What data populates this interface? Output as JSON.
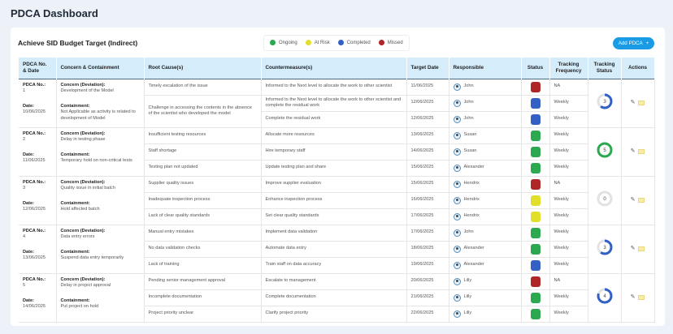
{
  "page_title": "PDCA Dashboard",
  "card_title": "Achieve SID Budget Target (Indirect)",
  "legend": [
    {
      "label": "Ongoing",
      "color": "#2ca94f"
    },
    {
      "label": "At Risk",
      "color": "#e2df2a"
    },
    {
      "label": "Completed",
      "color": "#3360c4"
    },
    {
      "label": "Missed",
      "color": "#b02525"
    }
  ],
  "add_button": "Add PDCA",
  "headers": [
    "PDCA No. & Date",
    "Concern & Containment",
    "Root Cause(s)",
    "Countermeasure(s)",
    "Target Date",
    "Responsible",
    "Status",
    "Tracking Frequency",
    "Tracking Status",
    "Actions"
  ],
  "labels": {
    "pdca_no": "PDCA No.:",
    "date": "Date:",
    "concern": "Concern (Deviation):",
    "containment": "Containment:"
  },
  "groups": [
    {
      "no": "1",
      "date": "10/06/2025",
      "concern": "Development of the Model",
      "containment": "Not Applicable as activity is related to development of Model",
      "tracking": {
        "value": "3",
        "fraction": 0.6,
        "color": "#3360c4"
      },
      "rows": [
        {
          "root": "Timely escalation of the issue",
          "counter": "Informed to the Next level to allocate the work to other scientist",
          "target": "11/06/2025",
          "resp": "John",
          "status": "Missed",
          "freq": "NA"
        },
        {
          "root": "Challenge in accessing the contents in the absence of the scientist who developed the model",
          "counter": "Informed to the Next level to allocate the work to other scientist and complete the residual work",
          "target": "12/06/2025",
          "resp": "John",
          "status": "Completed",
          "freq": "Weekly"
        },
        {
          "root": null,
          "counter": "Complete the residual work",
          "target": "12/06/2025",
          "resp": "John",
          "status": "Completed",
          "freq": "Weekly"
        }
      ]
    },
    {
      "no": "2",
      "date": "11/06/2025",
      "concern": "Delay in testing phase",
      "containment": "Temporary hold on non-critical tests",
      "tracking": {
        "value": "5",
        "fraction": 1,
        "color": "#2ca94f"
      },
      "rows": [
        {
          "root": "Insufficient testing resources",
          "counter": "Allocate more resources",
          "target": "13/06/2025",
          "resp": "Susan",
          "status": "Ongoing",
          "freq": "Weekly"
        },
        {
          "root": "Staff shortage",
          "counter": "Hire temporary staff",
          "target": "14/06/2025",
          "resp": "Susan",
          "status": "Ongoing",
          "freq": "Weekly"
        },
        {
          "root": "Testing plan not updated",
          "counter": "Update testing plan and share",
          "target": "15/06/2025",
          "resp": "Alexander",
          "status": "Ongoing",
          "freq": "Weekly"
        }
      ]
    },
    {
      "no": "3",
      "date": "12/06/2025",
      "concern": "Quality issue in initial batch",
      "containment": "Hold affected batch",
      "tracking": {
        "value": "0",
        "fraction": 0,
        "color": "#3360c4"
      },
      "rows": [
        {
          "root": "Supplier quality issues",
          "counter": "Improve supplier evaluation",
          "target": "15/06/2025",
          "resp": "Hendrix",
          "status": "Missed",
          "freq": "NA"
        },
        {
          "root": "Inadequate inspection process",
          "counter": "Enhance inspection process",
          "target": "16/06/2025",
          "resp": "Hendrix",
          "status": "At Risk",
          "freq": "Weekly"
        },
        {
          "root": "Lack of clear quality standards",
          "counter": "Set clear quality standards",
          "target": "17/06/2025",
          "resp": "Hendrix",
          "status": "At Risk",
          "freq": "Weekly"
        }
      ]
    },
    {
      "no": "4",
      "date": "13/06/2025",
      "concern": "Data entry errors",
      "containment": "Suspend data entry temporarily",
      "tracking": {
        "value": "3",
        "fraction": 0.6,
        "color": "#3360c4"
      },
      "rows": [
        {
          "root": "Manual entry mistakes",
          "counter": "Implement data validation",
          "target": "17/06/2025",
          "resp": "John",
          "status": "Ongoing",
          "freq": "Weekly"
        },
        {
          "root": "No data validation checks",
          "counter": "Automate data entry",
          "target": "18/06/2025",
          "resp": "Alexander",
          "status": "Ongoing",
          "freq": "Weekly"
        },
        {
          "root": "Lack of training",
          "counter": "Train staff on data accuracy",
          "target": "19/06/2025",
          "resp": "Alexander",
          "status": "Completed",
          "freq": "Weekly"
        }
      ]
    },
    {
      "no": "5",
      "date": "14/06/2025",
      "concern": "Delay in project approval",
      "containment": "Put project on hold",
      "tracking": {
        "value": "4",
        "fraction": 0.8,
        "color": "#3360c4"
      },
      "rows": [
        {
          "root": "Pending senior management approval",
          "counter": "Escalate to management",
          "target": "20/06/2025",
          "resp": "Lilly",
          "status": "Missed",
          "freq": "NA"
        },
        {
          "root": "Incomplete documentation",
          "counter": "Complete documentation",
          "target": "21/06/2025",
          "resp": "Lilly",
          "status": "Ongoing",
          "freq": "Weekly"
        },
        {
          "root": "Project priority unclear",
          "counter": "Clarify project priority",
          "target": "22/06/2025",
          "resp": "Lilly",
          "status": "Ongoing",
          "freq": "Weekly"
        }
      ]
    }
  ]
}
